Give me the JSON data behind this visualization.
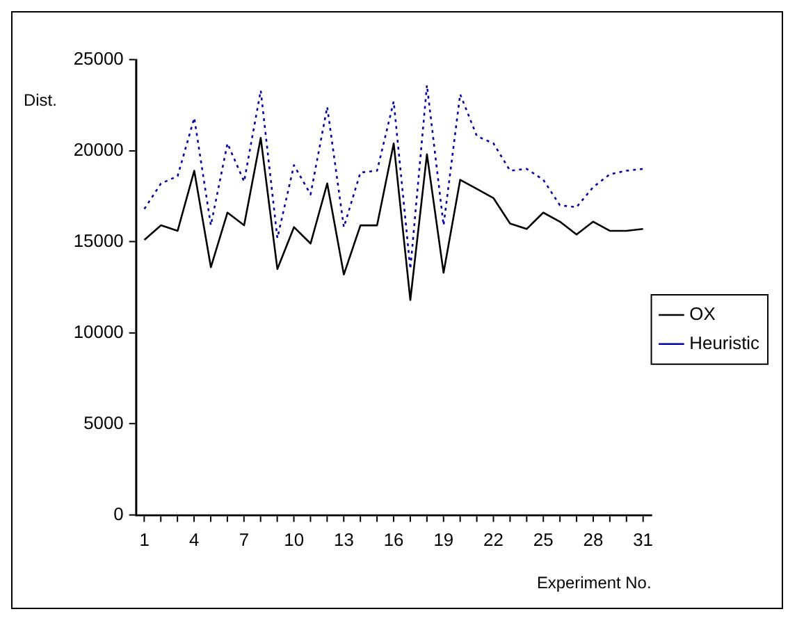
{
  "chart_data": {
    "type": "line",
    "ylabel": "Dist.",
    "xlabel": "Experiment No.",
    "categories": [
      "1",
      null,
      null,
      "4",
      null,
      null,
      "7",
      null,
      null,
      "10",
      null,
      null,
      "13",
      null,
      null,
      "16",
      null,
      null,
      "19",
      null,
      null,
      "22",
      null,
      null,
      "25",
      null,
      null,
      "28",
      null,
      null,
      "31"
    ],
    "series": [
      {
        "name": "OX",
        "color": "#000000",
        "line_style": "solid",
        "values": [
          15100,
          15900,
          15600,
          18900,
          13600,
          16600,
          15900,
          20700,
          13500,
          15800,
          14900,
          18200,
          13200,
          15900,
          15900,
          20400,
          11800,
          19800,
          13300,
          18400,
          17900,
          17400,
          16000,
          15700,
          16600,
          16100,
          15400,
          16100,
          15600,
          15600,
          15700
        ]
      },
      {
        "name": "Heuristic",
        "color": "#0000a0",
        "line_style": "dotted",
        "values": [
          16800,
          18200,
          18600,
          21800,
          15900,
          20400,
          18300,
          23300,
          15200,
          19200,
          17600,
          22400,
          15800,
          18800,
          18900,
          22700,
          13500,
          23600,
          15900,
          23100,
          20800,
          20400,
          18900,
          19000,
          18400,
          17000,
          16900,
          18000,
          18700,
          18900,
          19000
        ]
      }
    ],
    "ylim": [
      0,
      25000
    ],
    "yticks": [
      0,
      5000,
      10000,
      15000,
      20000,
      25000
    ],
    "grid": false,
    "legend": "right",
    "marker": "none"
  }
}
